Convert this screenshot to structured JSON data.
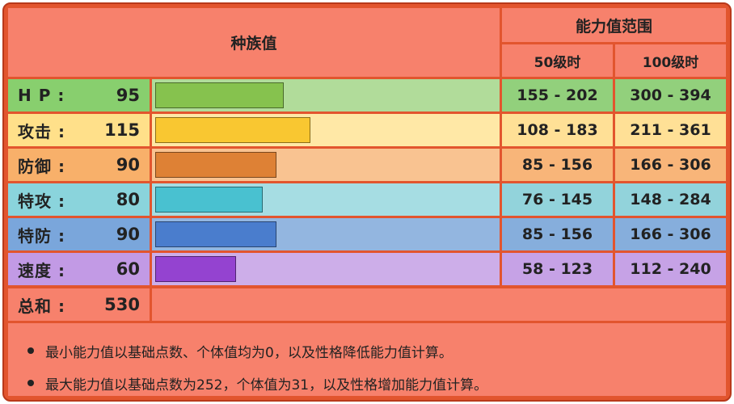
{
  "header": {
    "base_stats": "种族值",
    "stat_range": "能力值范围",
    "level50": "50级时",
    "level100": "100级时"
  },
  "stats": [
    {
      "name": "H P :",
      "value": 95,
      "bar_fraction": 0.376,
      "range50": "155 - 202",
      "range100": "300 - 394",
      "colors": {
        "label": "#88cf6e",
        "bar_bg": "#b1dc9a",
        "bar": "#86c24e",
        "range": "#92d07c"
      }
    },
    {
      "name": "攻击 :",
      "value": 115,
      "bar_fraction": 0.455,
      "range50": "108 - 183",
      "range100": "211 - 361",
      "colors": {
        "label": "#ffe08a",
        "bar_bg": "#ffe8a6",
        "bar": "#f9c731",
        "range": "#ffe096"
      }
    },
    {
      "name": "防御 :",
      "value": 90,
      "bar_fraction": 0.356,
      "range50": "85 - 156",
      "range100": "166 - 306",
      "colors": {
        "label": "#f8b06a",
        "bar_bg": "#f9c391",
        "bar": "#de8135",
        "range": "#f8b579"
      }
    },
    {
      "name": "特攻 :",
      "value": 80,
      "bar_fraction": 0.316,
      "range50": "76 - 145",
      "range100": "148 - 284",
      "colors": {
        "label": "#8ad4dc",
        "bar_bg": "#a6dde3",
        "bar": "#49c1d0",
        "range": "#92d3db"
      }
    },
    {
      "name": "特防 :",
      "value": 90,
      "bar_fraction": 0.356,
      "range50": "85 - 156",
      "range100": "166 - 306",
      "colors": {
        "label": "#7aa6db",
        "bar_bg": "#93b6e0",
        "bar": "#4a7dcd",
        "range": "#86aedc"
      }
    },
    {
      "name": "速度 :",
      "value": 60,
      "bar_fraction": 0.237,
      "range50": "58 - 123",
      "range100": "112 - 240",
      "colors": {
        "label": "#c29ae5",
        "bar_bg": "#cdaee9",
        "bar": "#9443d0",
        "range": "#c6a2e6"
      }
    }
  ],
  "total": {
    "name": "总和 :",
    "value": 530
  },
  "notes": [
    "最小能力值以基础点数、个体值均为0，以及性格降低能力值计算。",
    "最大能力值以基础点数为252，个体值为31，以及性格增加能力值计算。"
  ],
  "colors": {
    "table_border": "#e2552e",
    "header_bg": "#f7816c"
  }
}
